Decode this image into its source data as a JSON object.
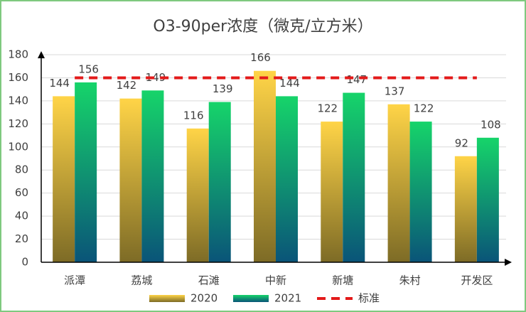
{
  "chart_data": {
    "type": "bar",
    "title": "O3-90per浓度（微克/立方米）",
    "categories": [
      "派潭",
      "荔城",
      "石滩",
      "中新",
      "新塘",
      "朱村",
      "开发区"
    ],
    "series": [
      {
        "name": "2020",
        "color": "#ffd447",
        "gradient_end": "#7d6b26",
        "values": [
          144,
          142,
          116,
          166,
          122,
          137,
          92
        ]
      },
      {
        "name": "2021",
        "color": "#16d46a",
        "gradient_end": "#0a5478",
        "values": [
          156,
          149,
          139,
          144,
          147,
          122,
          108
        ]
      }
    ],
    "reference_line": {
      "name": "标准",
      "value": 160,
      "color": "#e31a1a"
    },
    "ylim": [
      0,
      180
    ],
    "yticks": [
      0,
      20,
      40,
      60,
      80,
      100,
      120,
      140,
      160,
      180
    ],
    "grid": true
  }
}
